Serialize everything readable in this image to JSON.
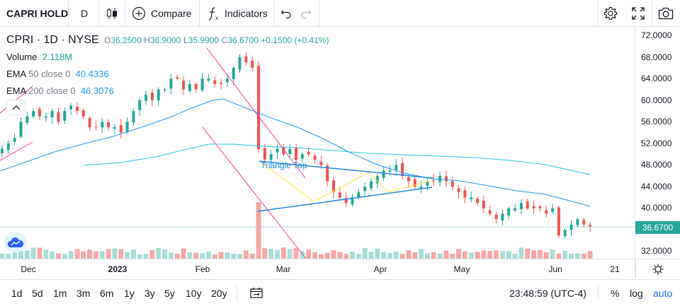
{
  "toolbar": {
    "symbol": "CAPRI HOLDINGS LTD",
    "interval": "D",
    "compare_label": "Compare",
    "indicators_label": "Indicators",
    "icons": [
      "candle-style-icon",
      "compare-plus-icon",
      "function-icon",
      "undo-icon",
      "redo-icon",
      "settings-gear-icon",
      "fullscreen-icon",
      "camera-icon"
    ]
  },
  "legend": {
    "title": "CPRI · 1D · NYSE",
    "open_key": "O",
    "open": "36.2500",
    "high_key": "H",
    "high": "36.9000",
    "low_key": "L",
    "low": "35.9900",
    "close_key": "C",
    "close": "36.6700",
    "change": "+0.1500 (+0.41%)",
    "volume_label": "Volume",
    "volume_value": "2.118M",
    "ema50_name": "EMA",
    "ema50_params": "50 close 0",
    "ema50_value": "40.4336",
    "ema200_name": "EMA",
    "ema200_params": "200 close 0",
    "ema200_value": "46.3076"
  },
  "annotation": {
    "pattern_label": "Triangle Top"
  },
  "price_axis": {
    "labels": [
      "72.0000",
      "68.0000",
      "64.0000",
      "60.0000",
      "56.0000",
      "52.0000",
      "48.0000",
      "44.0000",
      "40.0000",
      "32.0000"
    ],
    "last_price": "36.6700"
  },
  "time_axis": {
    "labels": [
      "Dec",
      "2023",
      "Feb",
      "Mar",
      "Apr",
      "May",
      "Jun",
      "21"
    ]
  },
  "bottombar": {
    "ranges": [
      "1d",
      "5d",
      "1m",
      "3m",
      "6m",
      "1y",
      "3y",
      "5y",
      "10y",
      "20y"
    ],
    "clock": "23:48:59 (UTC-4)",
    "percent_label": "%",
    "log_label": "log",
    "auto_label": "auto"
  },
  "colors": {
    "up": "#26a69a",
    "down": "#ef5350",
    "ema50": "#2196f3",
    "ema200": "#26c6da",
    "trend_line": "#ff3399",
    "triangle_edge": "#1e88e5",
    "triangle_fill": "#ffeb3b",
    "accent": "#2962ff"
  },
  "chart_data": {
    "type": "candlestick",
    "x_labels": [
      "Dec",
      "2023",
      "Feb",
      "Mar",
      "Apr",
      "May",
      "Jun",
      "21"
    ],
    "ylim": [
      30,
      74
    ],
    "y_ticks": [
      72,
      68,
      64,
      60,
      56,
      52,
      48,
      44,
      40,
      32
    ],
    "last_close": 36.67,
    "closes": [
      51,
      52,
      53,
      56,
      57,
      58,
      57,
      57,
      58,
      56,
      58,
      59,
      58,
      57,
      55,
      55,
      56,
      55,
      55,
      54,
      56,
      58,
      60,
      61,
      60,
      62,
      62,
      64,
      64,
      62,
      63,
      62,
      64,
      64,
      63,
      63,
      64,
      66,
      68,
      67,
      66,
      51,
      49,
      50,
      51,
      50,
      51,
      49,
      50,
      50,
      49,
      48,
      45,
      43,
      42,
      41,
      42,
      43,
      44,
      45,
      46,
      47,
      47,
      48,
      46,
      45,
      44,
      44,
      45,
      45,
      46,
      45,
      44,
      43,
      42,
      42,
      41,
      40,
      39,
      38,
      39,
      40,
      40,
      41,
      40,
      40,
      40,
      39,
      40,
      35,
      36,
      37,
      38,
      37,
      36.67
    ],
    "volume_label": "Volume"
  }
}
